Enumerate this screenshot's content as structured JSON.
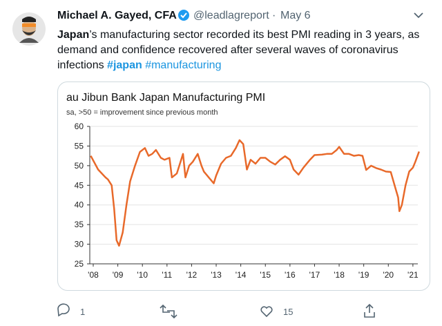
{
  "tweet": {
    "name": "Michael A. Gayed, CFA",
    "handle": "@leadlagreport",
    "separator": "·",
    "date": "May 6",
    "text": {
      "bold": "Japan",
      "body": "’s manufacturing sector recorded its best PMI reading in 3 years, as demand and confidence recovered after several waves of coronavirus infections",
      "hashtag_bold": "#japan",
      "hashtag": "#manufacturing"
    },
    "replies": "1",
    "likes": "15"
  },
  "chart_data": {
    "type": "line",
    "title": "au Jibun Bank Japan Manufacturing PMI",
    "subtitle": "sa, >50 = improvement since previous month",
    "color": "#e8692a",
    "grid": true,
    "xlim": [
      2007.86,
      2021.2
    ],
    "xticks": [
      {
        "value": 2008,
        "label": "'08"
      },
      {
        "value": 2009,
        "label": "'09"
      },
      {
        "value": 2010,
        "label": "'10"
      },
      {
        "value": 2011,
        "label": "'11"
      },
      {
        "value": 2012,
        "label": "'12"
      },
      {
        "value": 2013,
        "label": "'13"
      },
      {
        "value": 2014,
        "label": "'14"
      },
      {
        "value": 2015,
        "label": "'15"
      },
      {
        "value": 2016,
        "label": "'16"
      },
      {
        "value": 2017,
        "label": "'17"
      },
      {
        "value": 2018,
        "label": "'18"
      },
      {
        "value": 2019,
        "label": "'19"
      },
      {
        "value": 2020,
        "label": "'20"
      },
      {
        "value": 2021,
        "label": "'21"
      }
    ],
    "ylim": [
      25,
      60
    ],
    "yticks": [
      25,
      30,
      35,
      40,
      45,
      50,
      55,
      60
    ],
    "x": [
      2007.9,
      2008.2,
      2008.5,
      2008.6,
      2008.75,
      2008.85,
      2008.95,
      2009.05,
      2009.2,
      2009.35,
      2009.5,
      2009.7,
      2009.9,
      2010.1,
      2010.25,
      2010.4,
      2010.55,
      2010.75,
      2010.9,
      2011.1,
      2011.2,
      2011.4,
      2011.55,
      2011.65,
      2011.75,
      2011.9,
      2012.05,
      2012.25,
      2012.4,
      2012.5,
      2012.7,
      2012.9,
      2013.0,
      2013.2,
      2013.4,
      2013.6,
      2013.8,
      2013.95,
      2014.1,
      2014.25,
      2014.4,
      2014.6,
      2014.8,
      2015.0,
      2015.2,
      2015.4,
      2015.6,
      2015.8,
      2016.0,
      2016.15,
      2016.35,
      2016.55,
      2016.8,
      2017.0,
      2017.3,
      2017.5,
      2017.7,
      2017.9,
      2018.0,
      2018.2,
      2018.4,
      2018.6,
      2018.8,
      2018.95,
      2019.1,
      2019.3,
      2019.5,
      2019.7,
      2019.9,
      2020.1,
      2020.3,
      2020.4,
      2020.45,
      2020.55,
      2020.7,
      2020.85,
      2021.0,
      2021.1,
      2021.25
    ],
    "values": [
      52.5,
      49,
      47,
      46.5,
      45,
      39,
      31,
      29.6,
      33,
      40,
      46,
      50,
      53.5,
      54.5,
      52.5,
      53,
      54,
      52,
      51.5,
      52,
      47,
      48,
      51,
      53,
      47,
      50,
      51,
      53,
      50,
      48.5,
      47,
      45.5,
      47.5,
      50.5,
      52,
      52.5,
      54.5,
      56.5,
      55.5,
      49,
      51.5,
      50.5,
      52,
      52,
      51,
      50.3,
      51.5,
      52.4,
      51.5,
      49,
      47.7,
      49.5,
      51.4,
      52.7,
      52.8,
      53,
      53,
      54,
      54.8,
      53,
      53,
      52.5,
      52.7,
      52.5,
      48.9,
      50,
      49.4,
      49,
      48.5,
      48.4,
      44,
      41.9,
      38.4,
      40,
      45,
      48.5,
      49.5,
      51,
      53.6
    ]
  }
}
